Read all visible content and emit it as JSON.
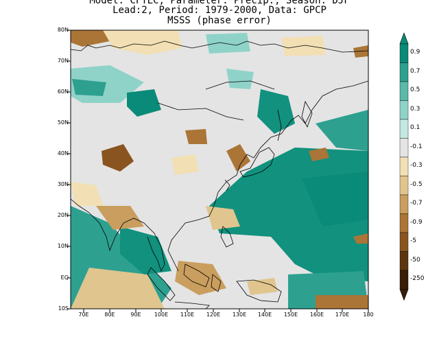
{
  "title": {
    "line1": "Model: CFTLC, Parameter: Precip., Season: DJF",
    "line2": "Lead:2, Period: 1979-2000, Data: GPCP",
    "line3": "MSSS (phase error)"
  },
  "map": {
    "lat_labels": [
      "80N",
      "70N",
      "60N",
      "50N",
      "40N",
      "30N",
      "20N",
      "10N",
      "EQ",
      "10S"
    ],
    "lon_labels": [
      "70E",
      "80E",
      "90E",
      "100E",
      "110E",
      "120E",
      "130E",
      "140E",
      "150E",
      "160E",
      "170E",
      "180"
    ],
    "lon_range": [
      65,
      180
    ],
    "lat_range": [
      -10,
      80
    ]
  },
  "colorbar": {
    "labels": [
      "0.9",
      "0.7",
      "0.5",
      "0.3",
      "0.1",
      "-0.1",
      "-0.3",
      "-0.5",
      "-0.7",
      "-0.9",
      "-5",
      "-50",
      "-250"
    ],
    "colors": [
      "#0a8a78",
      "#2ea090",
      "#5ab9a8",
      "#8fd3c8",
      "#c2e8e2",
      "#e4e4e4",
      "#f2e0b4",
      "#e0c58e",
      "#c99e5e",
      "#aa7536",
      "#8a5420",
      "#5c3510",
      "#3a1d06"
    ]
  },
  "colors": {
    "ocean_teal": "#11917e",
    "land_grey": "#e4e4e4",
    "coast": "#000000"
  }
}
